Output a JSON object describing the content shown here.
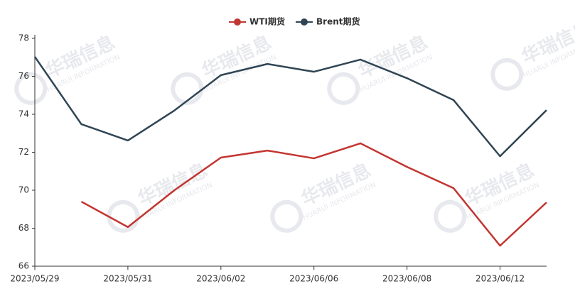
{
  "chart_data": {
    "type": "line",
    "watermark": "华瑞信息",
    "watermark_sub": "HUARUI INFORMATION",
    "categories": [
      "2023/05/29",
      null,
      "2023/05/31",
      null,
      "2023/06/02",
      null,
      "2023/06/06",
      null,
      "2023/06/08",
      null,
      "2023/06/12",
      null
    ],
    "series": [
      {
        "name": "WTI期货",
        "color": "#c23531",
        "values": [
          null,
          69.4,
          68.06,
          70.0,
          71.72,
          72.09,
          71.68,
          72.47,
          71.23,
          70.11,
          67.08,
          69.36
        ]
      },
      {
        "name": "Brent期货",
        "color": "#2f4554",
        "values": [
          77.03,
          73.48,
          72.62,
          74.2,
          76.06,
          76.65,
          76.24,
          76.88,
          75.9,
          74.75,
          71.79,
          74.22
        ]
      }
    ],
    "ylim": [
      66,
      78
    ],
    "yticks": [
      66,
      68,
      70,
      72,
      74,
      76,
      78
    ],
    "grid": false,
    "legend": "top"
  }
}
